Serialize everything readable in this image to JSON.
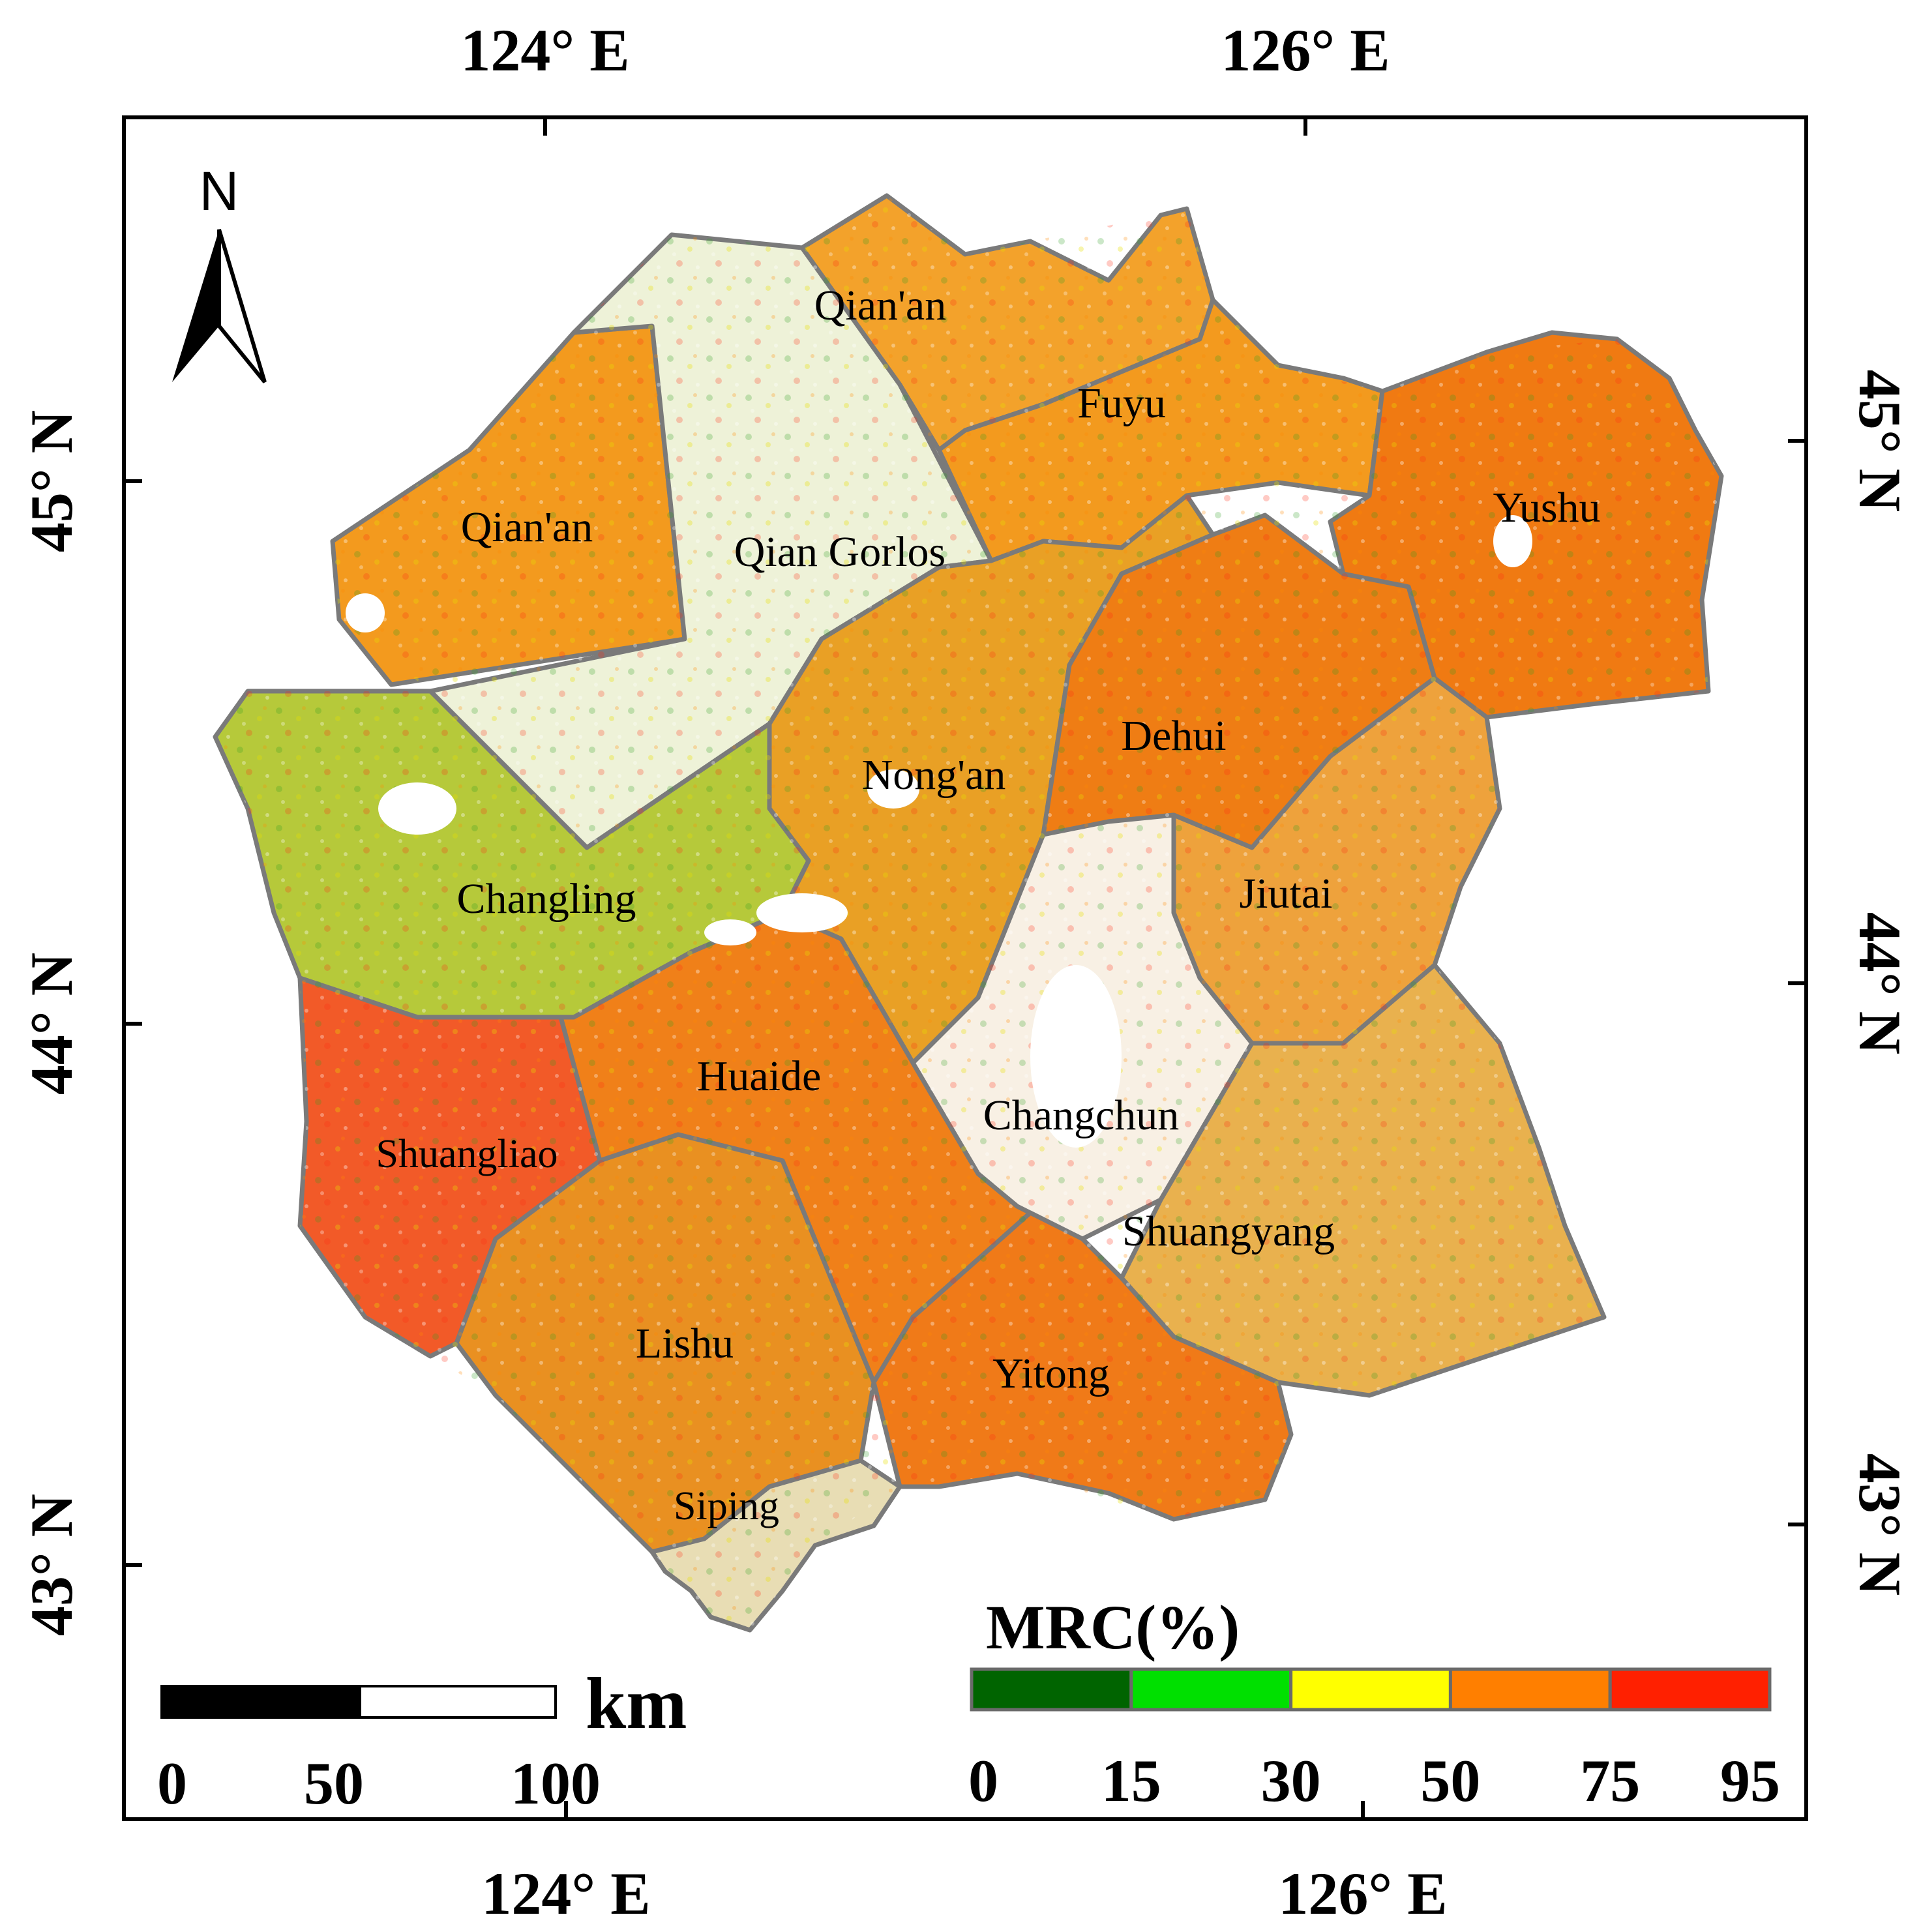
{
  "map": {
    "longitude_labels": [
      "124° E",
      "126° E"
    ],
    "latitude_labels": [
      "45° N",
      "44° N",
      "43° N"
    ],
    "north_arrow_label": "N",
    "counties": [
      {
        "name": "Qian'an",
        "color": "#f39a1e"
      },
      {
        "name": "Qian'an",
        "color": "#f3a22b"
      },
      {
        "name": "Fuyu",
        "color": "#f39a1e"
      },
      {
        "name": "Qian Gorlos",
        "color": "#eef2d8"
      },
      {
        "name": "Yushu",
        "color": "#f07a12"
      },
      {
        "name": "Nong'an",
        "color": "#e9a025"
      },
      {
        "name": "Dehui",
        "color": "#ef7d14"
      },
      {
        "name": "Changling",
        "color": "#b6c93a"
      },
      {
        "name": "Jiutai",
        "color": "#eea23c"
      },
      {
        "name": "Shuangliao",
        "color": "#f25a28"
      },
      {
        "name": "Huaide",
        "color": "#f08019"
      },
      {
        "name": "Changchun",
        "color": "#f8f0e4"
      },
      {
        "name": "Shuangyang",
        "color": "#e9b14e"
      },
      {
        "name": "Lishu",
        "color": "#e99021"
      },
      {
        "name": "Yitong",
        "color": "#f07a18"
      },
      {
        "name": "Siping",
        "color": "#e8ddb4"
      }
    ]
  },
  "scale_bar": {
    "unit": "km",
    "labels": [
      "0",
      "50",
      "100"
    ]
  },
  "legend": {
    "title": "MRC(%)",
    "breaks": [
      "0",
      "15",
      "30",
      "50",
      "75",
      "95"
    ],
    "colors": [
      "#006400",
      "#00e000",
      "#ffff00",
      "#ff7f00",
      "#ff2000"
    ]
  }
}
